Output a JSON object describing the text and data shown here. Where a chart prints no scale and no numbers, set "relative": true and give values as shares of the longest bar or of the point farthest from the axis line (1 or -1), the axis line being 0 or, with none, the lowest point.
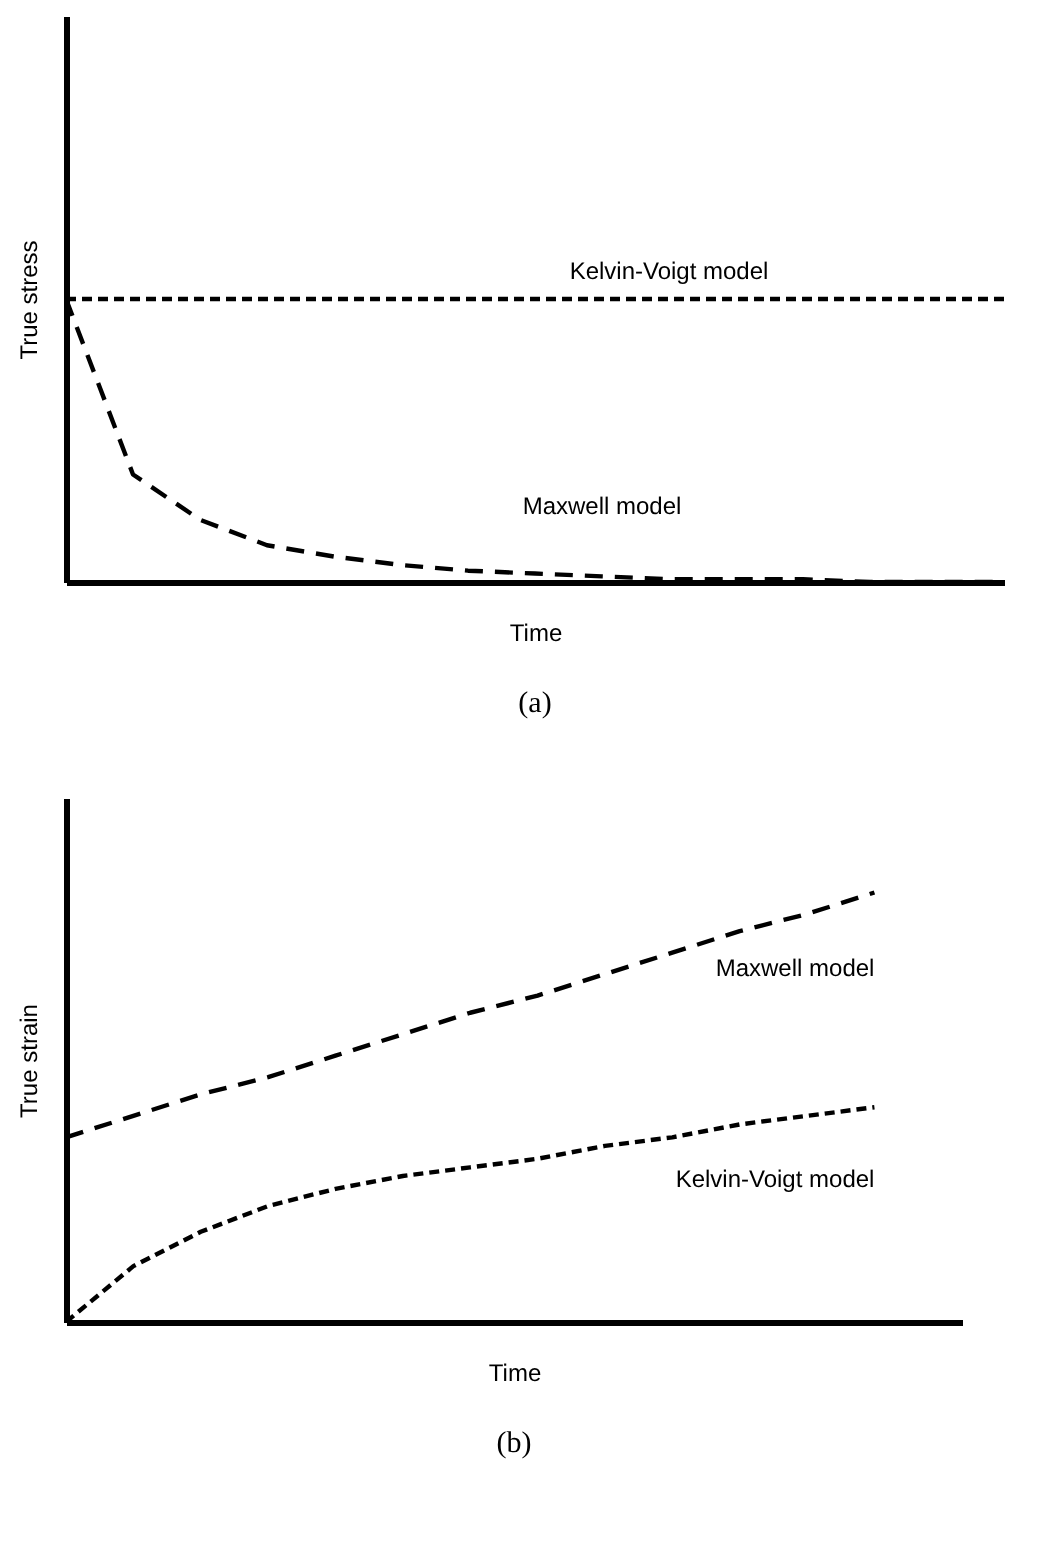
{
  "chart_data": [
    {
      "type": "line",
      "title": "(a)",
      "xlabel": "Time",
      "ylabel": "True stress",
      "relative": true,
      "tick_labels": false,
      "categories": [
        null,
        null,
        null,
        null,
        null,
        null,
        null,
        null,
        null,
        null,
        null,
        null,
        null,
        null,
        null
      ],
      "series": [
        {
          "name": "Kelvin-Voigt model",
          "color": "#000000",
          "line_style": "dashed",
          "values": [
            1,
            1,
            1,
            1,
            1,
            1,
            1,
            1,
            1,
            1,
            1,
            1,
            1,
            1,
            1
          ]
        },
        {
          "name": "Maxwell model",
          "color": "#000000",
          "line_style": "dashed",
          "values": [
            1,
            0.38,
            0.22,
            0.13,
            0.09,
            0.06,
            0.04,
            0.03,
            0.02,
            0.01,
            0.01,
            0.01,
            0,
            0,
            0
          ]
        }
      ]
    },
    {
      "type": "line",
      "title": "(b)",
      "xlabel": "Time",
      "ylabel": "True strain",
      "relative": true,
      "tick_labels": false,
      "categories": [
        null,
        null,
        null,
        null,
        null,
        null,
        null,
        null,
        null,
        null,
        null,
        null,
        null
      ],
      "series": [
        {
          "name": "Maxwell model",
          "color": "#000000",
          "line_style": "dashed",
          "values": [
            0.43,
            0.48,
            0.53,
            0.57,
            0.62,
            0.67,
            0.72,
            0.76,
            0.81,
            0.86,
            0.91,
            0.95,
            1
          ]
        },
        {
          "name": "Kelvin-Voigt model",
          "color": "#000000",
          "line_style": "dashed",
          "values": [
            0,
            0.13,
            0.21,
            0.27,
            0.31,
            0.34,
            0.36,
            0.38,
            0.41,
            0.43,
            0.46,
            0.48,
            0.5
          ]
        }
      ]
    }
  ]
}
